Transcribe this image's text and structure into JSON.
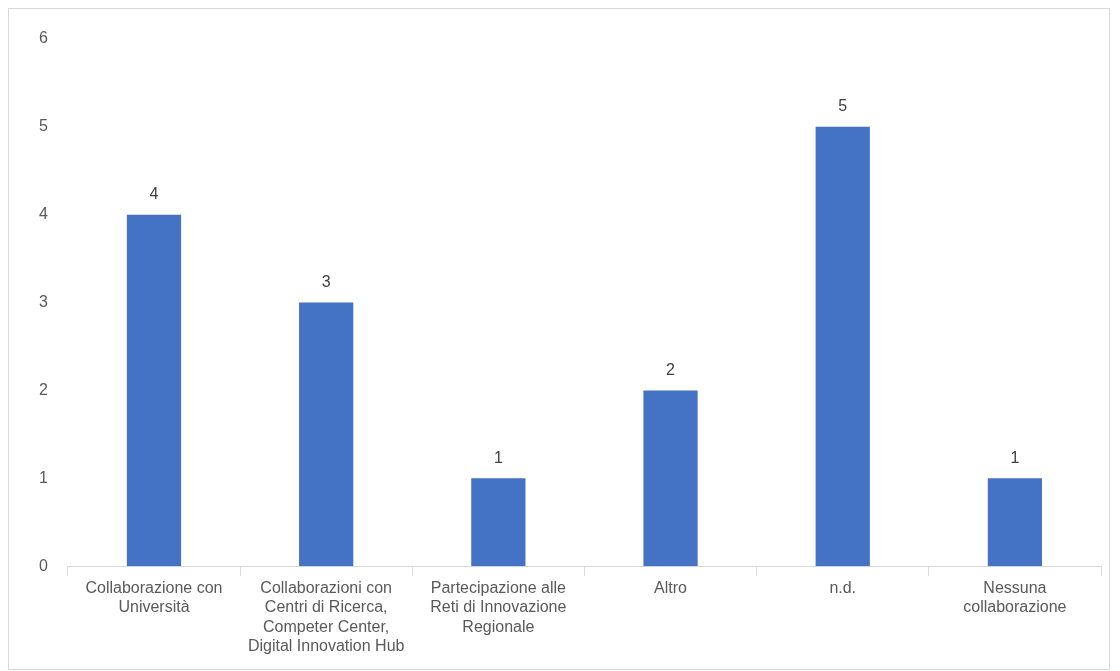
{
  "chart_data": {
    "type": "bar",
    "categories": [
      "Collaborazione con Università",
      "Collaborazioni con Centri di Ricerca, Competer Center, Digital Innovation Hub",
      "Partecipazione alle Reti di Innovazione Regionale",
      "Altro",
      "n.d.",
      "Nessuna collaborazione"
    ],
    "values": [
      4,
      3,
      1,
      2,
      5,
      1
    ],
    "color": "#4472c4",
    "ylim": [
      0,
      6
    ],
    "yticks": [
      0,
      1,
      2,
      3,
      4,
      5,
      6
    ],
    "grid": false,
    "legend": false,
    "data_labels": true
  }
}
